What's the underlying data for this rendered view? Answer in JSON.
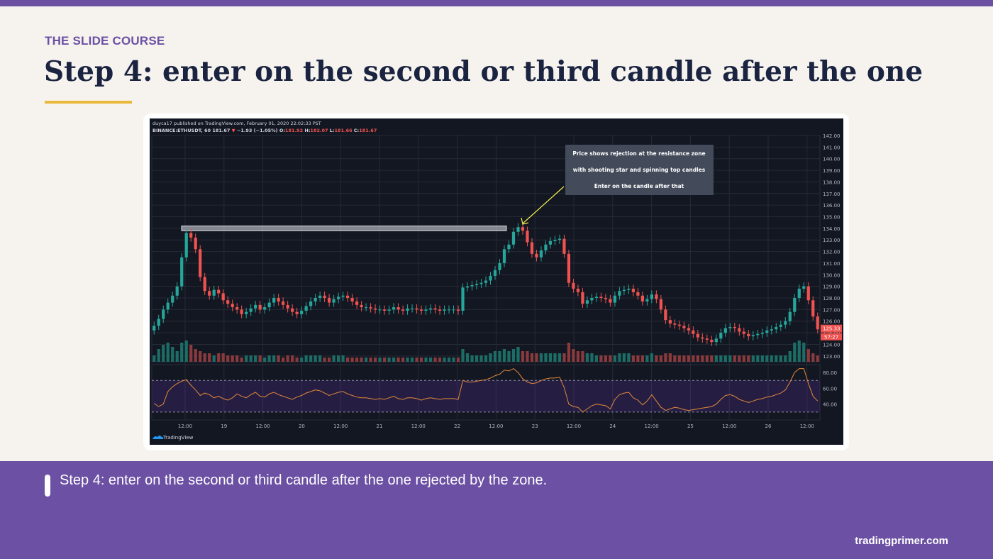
{
  "slide": {
    "kicker": "THE SLIDE COURSE",
    "title": "Step 4: enter on the second or third candle after the one",
    "caption": "Step 4: enter on the second or third candle after the one rejected by the zone.",
    "site": "tradingprimer.com"
  },
  "colors": {
    "purple": "#6b50a3",
    "navy": "#1a2340",
    "gold": "#e8b93a",
    "chart_bg": "#131722",
    "bull": "#26a69a",
    "bear": "#ef5350",
    "rsi_line": "#e2883a",
    "annotation_arrow": "#f4f04a"
  },
  "chart_data": {
    "type": "candlestick",
    "header_line1": "duyca17 published on TradingView.com, February 01, 2020 22:02:33 PST",
    "header_symbol": "BINANCE:ETHUSDT, 60",
    "header_last": "181.67",
    "header_change": "−1.93 (−1.05%)",
    "header_ohlc": {
      "O": "181.92",
      "H": "182.07",
      "L": "181.66",
      "C": "181.67"
    },
    "annotation": [
      "Price shows rejection at the resistance zone",
      "with shooting star and spinning top candles",
      "Enter on the candle after that"
    ],
    "y_ticks": [
      "142.00",
      "141.00",
      "140.00",
      "139.00",
      "138.00",
      "137.00",
      "136.00",
      "135.00",
      "134.00",
      "133.00",
      "132.00",
      "131.00",
      "130.00",
      "129.00",
      "128.00",
      "127.00",
      "126.00",
      "125.00",
      "124.00",
      "123.00"
    ],
    "y_range": [
      122.5,
      142.0
    ],
    "x_ticks": [
      "12:00",
      "19",
      "12:00",
      "20",
      "12:00",
      "21",
      "12:00",
      "22",
      "12:00",
      "23",
      "12:00",
      "24",
      "12:00",
      "25",
      "12:00",
      "26",
      "12:00"
    ],
    "price_label": "125.33",
    "countdown_label": "57:27",
    "resistance_zone": [
      133.8,
      134.2
    ],
    "rsi_ticks": [
      "80.00",
      "60.00",
      "40.00"
    ],
    "rsi_levels": [
      70,
      30
    ],
    "closes": [
      125.6,
      126.2,
      127.0,
      127.6,
      128.2,
      129.0,
      131.5,
      133.6,
      133.2,
      132.2,
      129.8,
      128.6,
      128.2,
      128.7,
      128.4,
      127.8,
      127.5,
      127.2,
      127.0,
      126.6,
      126.8,
      127.1,
      127.4,
      127.0,
      127.2,
      127.6,
      128.0,
      127.7,
      127.4,
      127.1,
      126.8,
      126.6,
      126.9,
      127.3,
      127.7,
      128.0,
      128.2,
      128.0,
      127.6,
      127.9,
      128.1,
      128.2,
      128.0,
      127.7,
      127.4,
      127.2,
      127.2,
      127.1,
      127.0,
      127.0,
      126.9,
      127.0,
      127.2,
      127.0,
      126.9,
      127.1,
      127.1,
      127.0,
      126.9,
      127.0,
      127.1,
      127.0,
      126.9,
      127.0,
      127.0,
      127.0,
      126.9,
      128.9,
      129.0,
      129.1,
      129.2,
      129.3,
      129.5,
      129.9,
      130.4,
      131.0,
      132.2,
      132.6,
      133.7,
      134.1,
      133.8,
      132.8,
      131.8,
      131.5,
      132.1,
      132.6,
      132.9,
      133.0,
      133.1,
      131.8,
      129.3,
      128.8,
      128.5,
      127.5,
      127.8,
      128.0,
      128.1,
      128.0,
      127.9,
      127.6,
      128.2,
      128.6,
      128.7,
      128.8,
      128.5,
      128.2,
      127.7,
      127.9,
      128.3,
      127.9,
      127.0,
      126.1,
      125.8,
      125.7,
      125.6,
      125.4,
      125.2,
      124.9,
      124.6,
      124.5,
      124.4,
      124.2,
      124.5,
      125.0,
      125.4,
      125.5,
      125.4,
      125.1,
      124.9,
      124.7,
      124.8,
      124.9,
      125.0,
      125.2,
      125.3,
      125.5,
      125.7,
      126.0,
      126.8,
      128.0,
      128.8,
      129.0,
      127.8,
      126.4,
      125.3
    ],
    "rsi": [
      41,
      37,
      40,
      56,
      62,
      66,
      69,
      71,
      64,
      58,
      51,
      54,
      52,
      48,
      50,
      47,
      45,
      48,
      53,
      50,
      48,
      52,
      55,
      50,
      49,
      53,
      55,
      52,
      50,
      48,
      46,
      49,
      51,
      54,
      56,
      58,
      57,
      54,
      51,
      53,
      55,
      56,
      53,
      51,
      49,
      48,
      48,
      47,
      46,
      47,
      46,
      48,
      50,
      47,
      46,
      48,
      48,
      47,
      45,
      47,
      48,
      47,
      46,
      47,
      47,
      47,
      46,
      70,
      68,
      68,
      69,
      70,
      71,
      73,
      76,
      78,
      83,
      82,
      85,
      80,
      72,
      68,
      66,
      67,
      70,
      72,
      73,
      73,
      74,
      61,
      40,
      37,
      36,
      30,
      34,
      38,
      40,
      39,
      38,
      34,
      46,
      52,
      54,
      55,
      48,
      45,
      39,
      44,
      52,
      44,
      36,
      32,
      34,
      36,
      35,
      33,
      32,
      33,
      34,
      35,
      36,
      37,
      40,
      46,
      51,
      52,
      50,
      46,
      44,
      42,
      44,
      46,
      47,
      49,
      50,
      52,
      54,
      58,
      68,
      80,
      85,
      85,
      66,
      50,
      44
    ],
    "volume": [
      3,
      6,
      8,
      9,
      7,
      5,
      9,
      10,
      8,
      6,
      5,
      4,
      4,
      3,
      4,
      4,
      3,
      3,
      3,
      2,
      3,
      3,
      3,
      3,
      2,
      3,
      3,
      3,
      2,
      3,
      3,
      2,
      2,
      3,
      3,
      3,
      3,
      2,
      2,
      3,
      3,
      3,
      2,
      2,
      2,
      2,
      2,
      2,
      2,
      2,
      2,
      2,
      2,
      2,
      2,
      2,
      2,
      2,
      2,
      2,
      2,
      2,
      2,
      2,
      2,
      2,
      2,
      6,
      4,
      3,
      3,
      3,
      3,
      4,
      5,
      5,
      6,
      5,
      6,
      7,
      5,
      5,
      4,
      4,
      4,
      4,
      4,
      4,
      4,
      4,
      9,
      6,
      5,
      5,
      4,
      4,
      3,
      3,
      3,
      3,
      3,
      4,
      4,
      4,
      3,
      3,
      3,
      3,
      4,
      3,
      3,
      4,
      4,
      3,
      3,
      3,
      3,
      3,
      3,
      3,
      3,
      3,
      3,
      3,
      3,
      3,
      3,
      3,
      3,
      3,
      3,
      3,
      3,
      3,
      3,
      3,
      3,
      3,
      5,
      9,
      10,
      9,
      6,
      4,
      3
    ]
  }
}
